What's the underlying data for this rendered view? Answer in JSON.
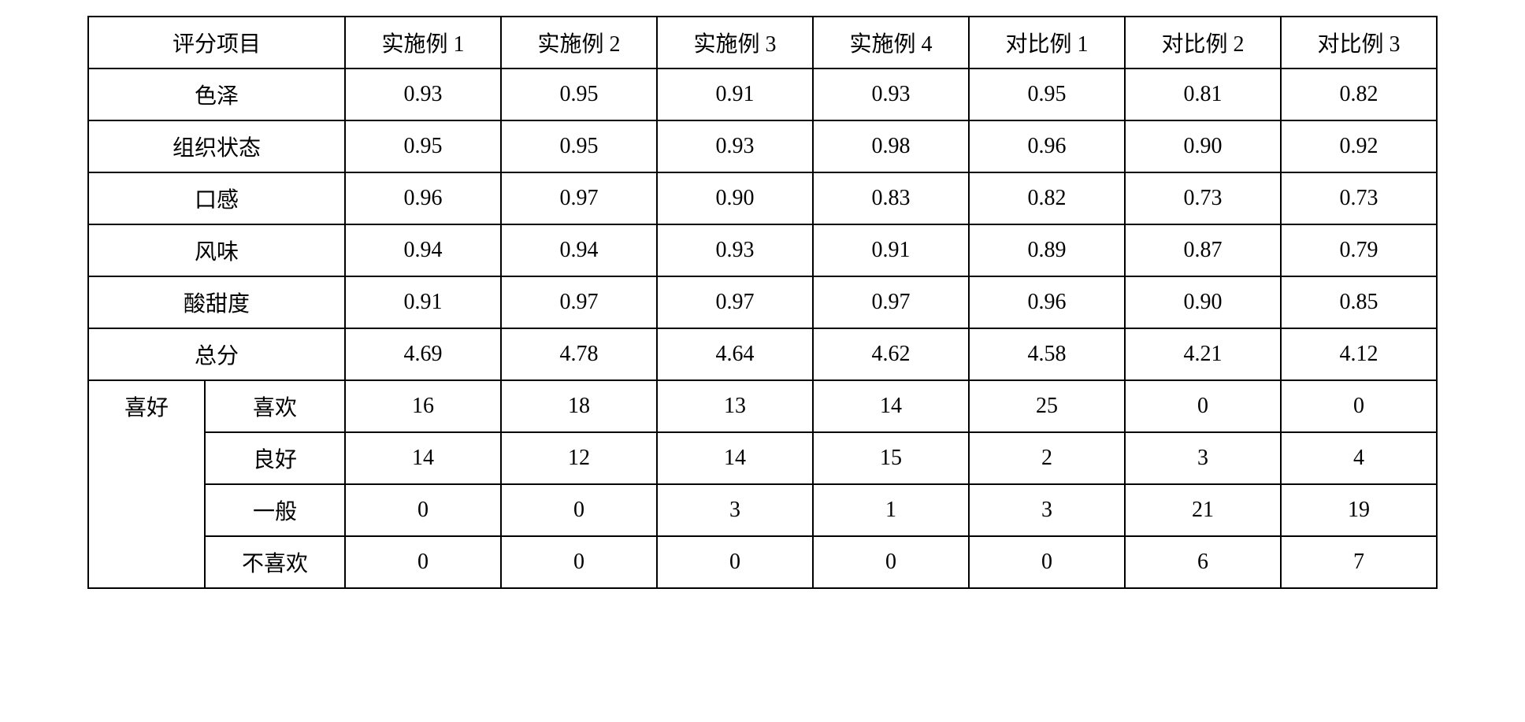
{
  "table": {
    "header": {
      "label": "评分项目",
      "columns": [
        "实施例 1",
        "实施例 2",
        "实施例 3",
        "实施例 4",
        "对比例 1",
        "对比例 2",
        "对比例 3"
      ]
    },
    "simple_rows": [
      {
        "label": "色泽",
        "values": [
          "0.93",
          "0.95",
          "0.91",
          "0.93",
          "0.95",
          "0.81",
          "0.82"
        ]
      },
      {
        "label": "组织状态",
        "values": [
          "0.95",
          "0.95",
          "0.93",
          "0.98",
          "0.96",
          "0.90",
          "0.92"
        ]
      },
      {
        "label": "口感",
        "values": [
          "0.96",
          "0.97",
          "0.90",
          "0.83",
          "0.82",
          "0.73",
          "0.73"
        ]
      },
      {
        "label": "风味",
        "values": [
          "0.94",
          "0.94",
          "0.93",
          "0.91",
          "0.89",
          "0.87",
          "0.79"
        ]
      },
      {
        "label": "酸甜度",
        "values": [
          "0.91",
          "0.97",
          "0.97",
          "0.97",
          "0.96",
          "0.90",
          "0.85"
        ]
      },
      {
        "label": "总分",
        "values": [
          "4.69",
          "4.78",
          "4.64",
          "4.62",
          "4.58",
          "4.21",
          "4.12"
        ]
      }
    ],
    "group": {
      "label": "喜好",
      "rows": [
        {
          "label": "喜欢",
          "values": [
            "16",
            "18",
            "13",
            "14",
            "25",
            "0",
            "0"
          ]
        },
        {
          "label": "良好",
          "values": [
            "14",
            "12",
            "14",
            "15",
            "2",
            "3",
            "4"
          ]
        },
        {
          "label": "一般",
          "values": [
            "0",
            "0",
            "3",
            "1",
            "3",
            "21",
            "19"
          ]
        },
        {
          "label": "不喜欢",
          "values": [
            "0",
            "0",
            "0",
            "0",
            "0",
            "6",
            "7"
          ]
        }
      ]
    }
  }
}
